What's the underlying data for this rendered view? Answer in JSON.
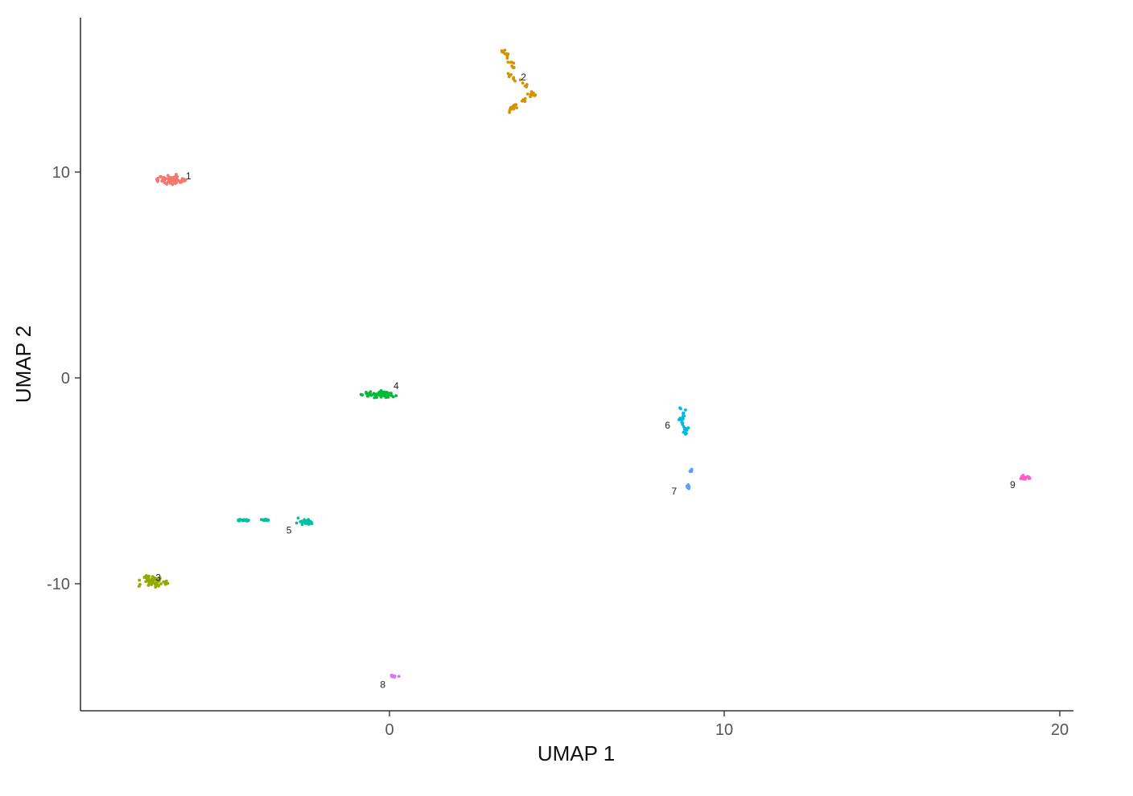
{
  "chart_data": {
    "type": "scatter",
    "title": "",
    "xlabel": "UMAP 1",
    "ylabel": "UMAP 2",
    "xlim": [
      -9.2,
      20.4
    ],
    "ylim": [
      -16.1,
      17.7
    ],
    "xticks": [
      0,
      10,
      20
    ],
    "yticks": [
      -10,
      0,
      10
    ],
    "grid": false,
    "legend": "none",
    "clusters": [
      {
        "label": "1",
        "color": "#F8766D",
        "center": [
          -6.4,
          9.6
        ],
        "label_pos": [
          -6.0,
          9.8
        ]
      },
      {
        "label": "2",
        "color": "#D39200",
        "center": [
          3.6,
          14.6
        ],
        "label_pos": [
          4.0,
          14.6
        ]
      },
      {
        "label": "3",
        "color": "#93AA00",
        "center": [
          -7.0,
          -9.9
        ],
        "label_pos": [
          -6.9,
          -9.7
        ]
      },
      {
        "label": "4",
        "color": "#00BA38",
        "center": [
          -0.3,
          -0.8
        ],
        "label_pos": [
          0.2,
          -0.4
        ]
      },
      {
        "label": "5",
        "color": "#00C19F",
        "center": [
          -3.6,
          -7.0
        ],
        "label_pos": [
          -3.0,
          -7.4
        ]
      },
      {
        "label": "6",
        "color": "#00B9E3",
        "center": [
          8.7,
          -2.0
        ],
        "label_pos": [
          8.3,
          -2.3
        ]
      },
      {
        "label": "7",
        "color": "#619CFF",
        "center": [
          8.9,
          -5.0
        ],
        "label_pos": [
          8.5,
          -5.5
        ]
      },
      {
        "label": "8",
        "color": "#DB72FB",
        "center": [
          0.1,
          -14.5
        ],
        "label_pos": [
          -0.2,
          -14.9
        ]
      },
      {
        "label": "9",
        "color": "#FF61C3",
        "center": [
          18.9,
          -4.8
        ],
        "label_pos": [
          18.6,
          -5.2
        ]
      }
    ]
  }
}
